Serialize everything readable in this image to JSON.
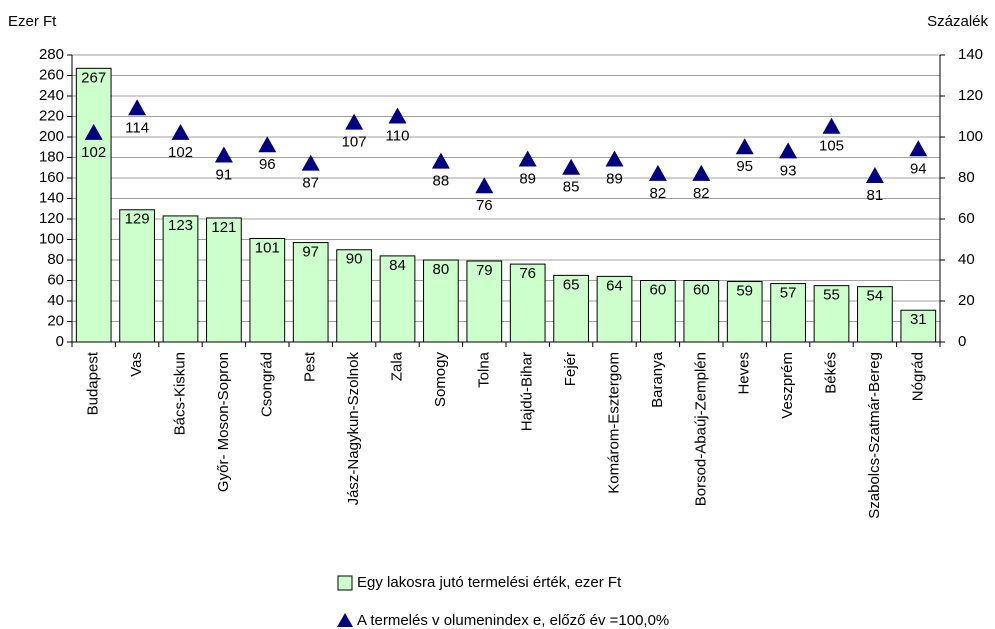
{
  "chart_data": {
    "type": "bar",
    "y_label": "Ezer Ft",
    "y2_label": "Százalék",
    "categories": [
      "Budapest",
      "Vas",
      "Bács-Kiskun",
      "Győr- Moson-Sopron",
      "Csongrád",
      "Pest",
      "Jász-Nagykun-Szolnok",
      "Zala",
      "Somogy",
      "Tolna",
      "Hajdú-Bihar",
      "Fejér",
      "Komárom-Esztergom",
      "Baranya",
      "Borsod-Abaúj-Zemplén",
      "Heves",
      "Veszprém",
      "Békés",
      "Szabolcs-Szatmár-Bereg",
      "Nógrád"
    ],
    "series": [
      {
        "name": "Egy  lakosra jutó termelési érték, ezer Ft",
        "type": "bar",
        "color": "#ccffcc",
        "values": [
          267,
          129,
          123,
          121,
          101,
          97,
          90,
          84,
          80,
          79,
          76,
          65,
          64,
          60,
          60,
          59,
          57,
          55,
          54,
          31
        ]
      },
      {
        "name": "A termelés v olumenindex e, előző év =100,0%",
        "type": "scatter",
        "marker": "triangle",
        "color": "#000080",
        "axis": "y2",
        "values": [
          102,
          114,
          102,
          91,
          96,
          87,
          107,
          110,
          88,
          76,
          89,
          85,
          89,
          82,
          82,
          95,
          93,
          105,
          81,
          94
        ]
      }
    ],
    "ylim": [
      0,
      280
    ],
    "yticks": [
      0,
      20,
      40,
      60,
      80,
      100,
      120,
      140,
      160,
      180,
      200,
      220,
      240,
      260,
      280
    ],
    "y2lim": [
      0,
      140
    ],
    "y2ticks": [
      0,
      20,
      40,
      60,
      80,
      100,
      120,
      140
    ],
    "grid": true,
    "legend": "bottom"
  }
}
